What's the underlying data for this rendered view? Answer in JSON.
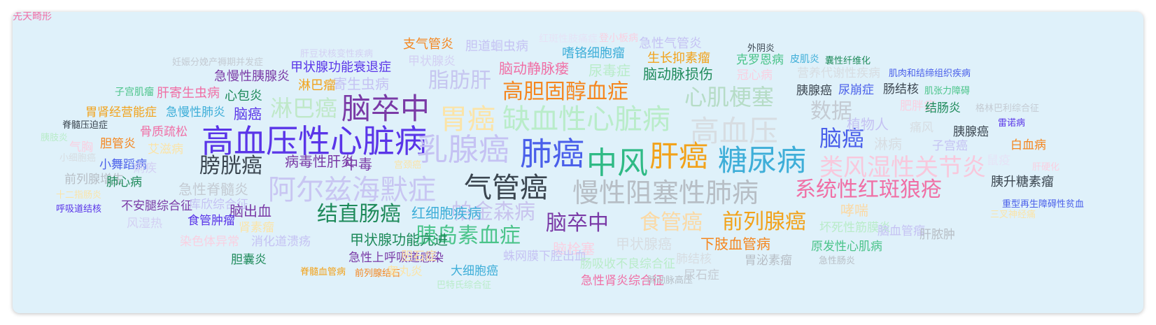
{
  "words": [
    {
      "text": "高血压性心脏病",
      "color": "#5a35e8"
    },
    {
      "text": "乳腺癌",
      "color": "#c5c2f3"
    },
    {
      "text": "肺癌",
      "color": "#4a5fea"
    },
    {
      "text": "中风",
      "color": "#2fba85"
    },
    {
      "text": "肝癌",
      "color": "#f2a21a"
    },
    {
      "text": "糖尿病",
      "color": "#3eaed8"
    },
    {
      "text": "缺血性心脏病",
      "color": "#b9ecc9"
    },
    {
      "text": "高血压",
      "color": "#d7dde2"
    },
    {
      "text": "脑卒中",
      "color": "#7a3aa6"
    },
    {
      "text": "胃癌",
      "color": "#fbe4a8"
    },
    {
      "text": "阿尔兹海默症",
      "color": "#c8c6f2"
    },
    {
      "text": "气管癌",
      "color": "#3b4650"
    },
    {
      "text": "慢性阻塞性肺病",
      "color": "#b7bec5"
    },
    {
      "text": "系统性红斑狼疮",
      "color": "#f06fa5"
    },
    {
      "text": "类风湿性关节炎",
      "color": "#f8c8dc"
    },
    {
      "text": "高胆固醇血症",
      "color": "#f5861e"
    },
    {
      "text": "心肌梗塞",
      "color": "#b6dcc6"
    },
    {
      "text": "脂肪肝",
      "color": "#c6c6f0"
    },
    {
      "text": "淋巴癌",
      "color": "#bfe8c8"
    },
    {
      "text": "膀胱癌",
      "color": "#3b4650"
    },
    {
      "text": "结直肠癌",
      "color": "#1e8a5a"
    },
    {
      "text": "帕金森病",
      "color": "#c8c4ee"
    },
    {
      "text": "脑卒中",
      "color": "#7a3aa6"
    },
    {
      "text": "食管癌",
      "color": "#fbd9a4"
    },
    {
      "text": "前列腺癌",
      "color": "#f2a21a"
    },
    {
      "text": "胰岛素血症",
      "color": "#4bc48a"
    },
    {
      "text": "数据",
      "color": "#c4cbd3"
    },
    {
      "text": "脑癌",
      "color": "#4a5fea"
    },
    {
      "text": "支气管炎",
      "color": "#f5861e"
    },
    {
      "text": "胆道蛔虫病",
      "color": "#c5c2f3"
    },
    {
      "text": "红斑性肢痛症",
      "color": "#e6e3f6"
    },
    {
      "text": "登小板病",
      "color": "#f9d0e1"
    },
    {
      "text": "急性气管炎",
      "color": "#c5c2f3"
    },
    {
      "text": "外阴炎",
      "color": "#3b4650"
    },
    {
      "text": "妊娠分娩产褥期并发症",
      "color": "#c4cbd3"
    },
    {
      "text": "肝豆状核变性疾病",
      "color": "#d3d0f3"
    },
    {
      "text": "甲状腺炎",
      "color": "#d3d0f3"
    },
    {
      "text": "嗜铬细胞瘤",
      "color": "#3eaed8"
    },
    {
      "text": "生长抑素瘤",
      "color": "#f2a21a"
    },
    {
      "text": "克罗恩病",
      "color": "#4bc48a"
    },
    {
      "text": "皮肌炎",
      "color": "#3eaed8"
    },
    {
      "text": "囊性纤维化",
      "color": "#1e8a5a"
    },
    {
      "text": "甲状腺功能衰退症",
      "color": "#5a35e8"
    },
    {
      "text": "急慢性胰腺炎",
      "color": "#7a3aa6"
    },
    {
      "text": "脑动静脉瘘",
      "color": "#f06fa5"
    },
    {
      "text": "尿毒症",
      "color": "#b9ecc9"
    },
    {
      "text": "脑动脉损伤",
      "color": "#1e8a5a"
    },
    {
      "text": "冠心病",
      "color": "#f9d0e1"
    },
    {
      "text": "营养代谢性疾病",
      "color": "#d7dde2"
    },
    {
      "text": "肌肉和结缔组织疾病",
      "color": "#4a5fea"
    },
    {
      "text": "寄生虫病",
      "color": "#c5c2f3"
    },
    {
      "text": "淋巴瘤",
      "color": "#f2a21a"
    },
    {
      "text": "子宫肌瘤",
      "color": "#4bc48a"
    },
    {
      "text": "肝寄生虫病",
      "color": "#f06fa5"
    },
    {
      "text": "心包炎",
      "color": "#1e8a5a"
    },
    {
      "text": "胰腺癌",
      "color": "#3b4650"
    },
    {
      "text": "尿崩症",
      "color": "#4a5fea"
    },
    {
      "text": "肠结核",
      "color": "#3b4650"
    },
    {
      "text": "肌张力障碍",
      "color": "#4bc48a"
    },
    {
      "text": "胃肾经营能症",
      "color": "#f2a21a"
    },
    {
      "text": "急慢性肺炎",
      "color": "#3eaed8"
    },
    {
      "text": "脑癌",
      "color": "#5a35e8"
    },
    {
      "text": "肥胖症",
      "color": "#f9d0e1"
    },
    {
      "text": "结肠炎",
      "color": "#1e8a5a"
    },
    {
      "text": "格林巴利综合征",
      "color": "#c4cbd3"
    },
    {
      "text": "脊髓压迫症",
      "color": "#3b4650"
    },
    {
      "text": "植物人",
      "color": "#c5c2f3"
    },
    {
      "text": "痛风",
      "color": "#d7dde2"
    },
    {
      "text": "胰腺癌",
      "color": "#3b4650"
    },
    {
      "text": "雷诺病",
      "color": "#5a35e8"
    },
    {
      "text": "骨质疏松",
      "color": "#f06fa5"
    },
    {
      "text": "胰肢炎",
      "color": "#b9ecc9"
    },
    {
      "text": "胆管炎",
      "color": "#f5861e"
    },
    {
      "text": "气胸",
      "color": "#f9d0e1"
    },
    {
      "text": "艾滋病",
      "color": "#fbe4a8"
    },
    {
      "text": "淋病",
      "color": "#d7dde2"
    },
    {
      "text": "子宫癌",
      "color": "#c5c2f3"
    },
    {
      "text": "白血病",
      "color": "#f5861e"
    },
    {
      "text": "小细胞癌",
      "color": "#d7dde2"
    },
    {
      "text": "小舞蹈病",
      "color": "#4a5fea"
    },
    {
      "text": "痢疾",
      "color": "#d3d0f3"
    },
    {
      "text": "病毒性肝炎",
      "color": "#7a3aa6"
    },
    {
      "text": "中毒",
      "color": "#7a3aa6"
    },
    {
      "text": "宫颈癌",
      "color": "#fbe4a8"
    },
    {
      "text": "鼠疫",
      "color": "#e6e3f6"
    },
    {
      "text": "肝硬化",
      "color": "#f9d0e1"
    },
    {
      "text": "前列腺增生",
      "color": "#b7bec5"
    },
    {
      "text": "肺心病",
      "color": "#1e8a5a"
    },
    {
      "text": "胰升糖素瘤",
      "color": "#3b4650"
    },
    {
      "text": "十二指肠炎",
      "color": "#fbe4a8"
    },
    {
      "text": "急性脊髓炎",
      "color": "#c4cbd3"
    },
    {
      "text": "呼吸道结核",
      "color": "#5a35e8"
    },
    {
      "text": "不安腿综合征",
      "color": "#7a3aa6"
    },
    {
      "text": "库欣综合征",
      "color": "#c5c2f3"
    },
    {
      "text": "脑出血",
      "color": "#7a3aa6"
    },
    {
      "text": "红细胞疾病",
      "color": "#3eaed8"
    },
    {
      "text": "哮喘",
      "color": "#fbd9a4"
    },
    {
      "text": "重型再生障碍性贫血",
      "color": "#4a5fea"
    },
    {
      "text": "三叉神经痛",
      "color": "#fbe4a8"
    },
    {
      "text": "风湿热",
      "color": "#d3d0f3"
    },
    {
      "text": "食管肿瘤",
      "color": "#5a35e8"
    },
    {
      "text": "肾素瘤",
      "color": "#fbe4a8"
    },
    {
      "text": "坏死性筋膜炎",
      "color": "#b9ecc9"
    },
    {
      "text": "脑血管瘤",
      "color": "#c5c2f3"
    },
    {
      "text": "肝脓肿",
      "color": "#b7bec5"
    },
    {
      "text": "染色体异常",
      "color": "#f9d0e1"
    },
    {
      "text": "消化道溃疡",
      "color": "#c5c2f3"
    },
    {
      "text": "甲状腺功能亢进",
      "color": "#1e8a5a"
    },
    {
      "text": "脑栓塞",
      "color": "#f9d0e1"
    },
    {
      "text": "甲状腺癌",
      "color": "#d7dde2"
    },
    {
      "text": "下肢血管病",
      "color": "#f5861e"
    },
    {
      "text": "原发性心肌病",
      "color": "#4bc48a"
    },
    {
      "text": "胆囊炎",
      "color": "#1e8a5a"
    },
    {
      "text": "急性上呼吸道感染",
      "color": "#7a3aa6"
    },
    {
      "text": "胆石症",
      "color": "#fbd9a4"
    },
    {
      "text": "蛛网膜下腔出血",
      "color": "#c5c2f3"
    },
    {
      "text": "肺结核",
      "color": "#d7dde2"
    },
    {
      "text": "胃泌素瘤",
      "color": "#b7bec5"
    },
    {
      "text": "急性肠炎",
      "color": "#b7bec5"
    },
    {
      "text": "脊髓血管病",
      "color": "#f2a21a"
    },
    {
      "text": "前列腺结石",
      "color": "#f5861e"
    },
    {
      "text": "睾丸炎",
      "color": "#fbe4a8"
    },
    {
      "text": "大细胞癌",
      "color": "#3eaed8"
    },
    {
      "text": "肠吸收不良综合征",
      "color": "#b9ecc9"
    },
    {
      "text": "巴特氏综合征",
      "color": "#b9ecc9"
    },
    {
      "text": "急性肾炎综合征",
      "color": "#f06fa5"
    },
    {
      "text": "肺动脉高压",
      "color": "#b7bec5"
    },
    {
      "text": "尿石症",
      "color": "#c4cbd3"
    },
    {
      "text": "先天畸形",
      "color": "#f06fa5"
    }
  ]
}
